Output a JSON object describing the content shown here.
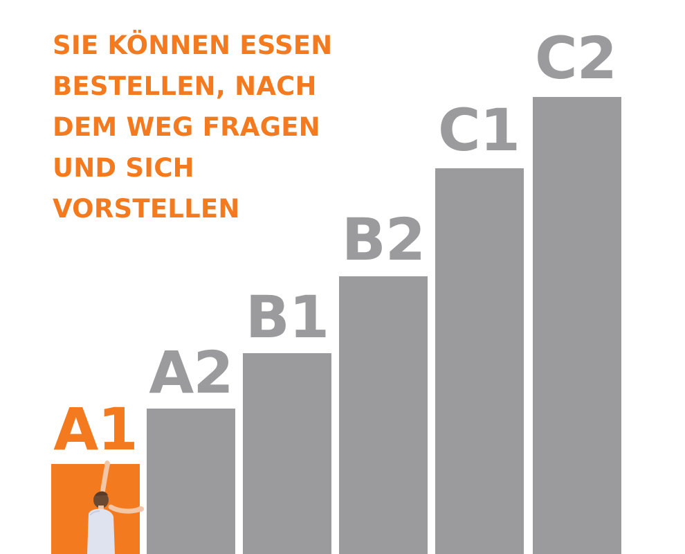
{
  "headline": {
    "lines": [
      "SIE KÖNNEN ESSEN",
      "BESTELLEN, NACH",
      "DEM WEG FRAGEN",
      "UND SICH",
      "VORSTELLEN"
    ]
  },
  "levels": [
    {
      "label": "A1",
      "active": true
    },
    {
      "label": "A2",
      "active": false
    },
    {
      "label": "B1",
      "active": false
    },
    {
      "label": "B2",
      "active": false
    },
    {
      "label": "C1",
      "active": false
    },
    {
      "label": "C2",
      "active": false
    }
  ],
  "colors": {
    "accent": "#f47a20",
    "block": "#9b9a9c",
    "background": "#ffffff"
  },
  "illustration": {
    "icon": "person-climbing-icon"
  }
}
